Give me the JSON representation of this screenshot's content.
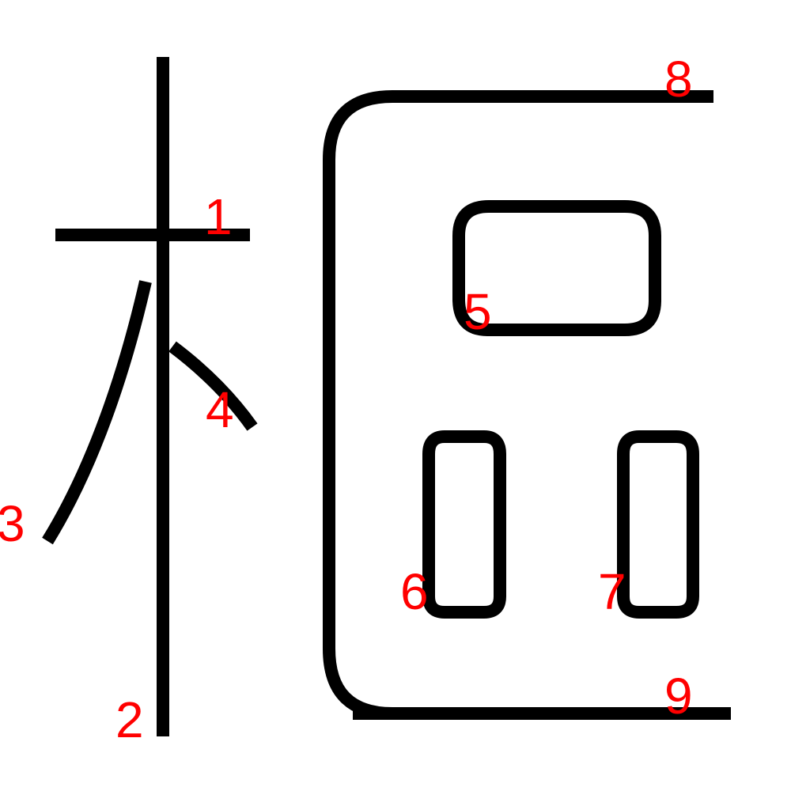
{
  "strokes": [
    {
      "id": "stroke-1",
      "number": "1"
    },
    {
      "id": "stroke-2",
      "number": "2"
    },
    {
      "id": "stroke-3",
      "number": "3"
    },
    {
      "id": "stroke-4",
      "number": "4"
    },
    {
      "id": "stroke-5",
      "number": "5"
    },
    {
      "id": "stroke-6",
      "number": "6"
    },
    {
      "id": "stroke-7",
      "number": "7"
    },
    {
      "id": "stroke-8",
      "number": "8"
    },
    {
      "id": "stroke-9",
      "number": "9"
    }
  ],
  "colors": {
    "stroke": "#000000",
    "number": "#ff0000",
    "background": "#ffffff"
  }
}
